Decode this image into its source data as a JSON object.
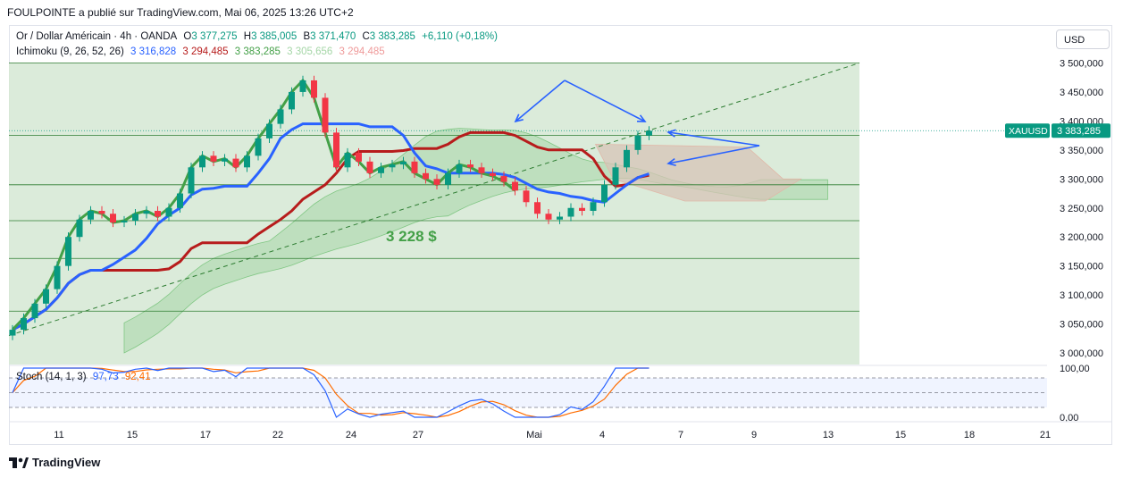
{
  "header": {
    "publish_line": "FOULPOINTE a publié sur TradingView.com, Mai 06, 2025 13:26 UTC+2"
  },
  "legend": {
    "symbol_line": "Or / Dollar Américain · 4h · OANDA",
    "ohlc": {
      "o_label": "O",
      "o": "3 377,275",
      "h_label": "H",
      "h": "3 385,005",
      "b_label": "B",
      "b": "3 371,470",
      "c_label": "C",
      "c": "3 383,285",
      "change": "+6,110 (+0,18%)"
    },
    "ichimoku_label": "Ichimoku (9, 26, 52, 26)",
    "ichimoku_values": [
      "3 316,828",
      "3 294,485",
      "3 383,285",
      "3 305,656",
      "3 294,485"
    ],
    "stoch_label": "Stoch (14, 1, 3)",
    "stoch_values": [
      "97,73",
      "92,41"
    ]
  },
  "currency_button": "USD",
  "footer_brand": "TradingView",
  "colors": {
    "bull": "#089981",
    "bear": "#f23645",
    "tenkan": "#2962ff",
    "kijun": "#b71c1c",
    "chikou": "#43a047",
    "cloud_bull": "#a5d6a7",
    "cloud_bear": "#d7c4b7",
    "zone": "#d5e8d4",
    "stoch_k": "#2962ff",
    "stoch_d": "#ff6d00"
  },
  "chart_data": {
    "type": "candlestick",
    "symbol": "XAUUSD",
    "last_price": "3 383,285",
    "y_ticks": [
      "3 500,000",
      "3 450,000",
      "3 400,000",
      "3 350,000",
      "3 300,000",
      "3 250,000",
      "3 200,000",
      "3 150,000",
      "3 100,000",
      "3 050,000",
      "3 000,000"
    ],
    "ylim": [
      2980,
      3510
    ],
    "x_ticks": [
      "11",
      "15",
      "17",
      "22",
      "24",
      "27",
      "Mai",
      "4",
      "7",
      "9",
      "13",
      "15",
      "18",
      "21"
    ],
    "annotation": "3 228 $",
    "horizontal_levels": [
      3500,
      3375,
      3290,
      3228,
      3163,
      3072
    ],
    "trendline": {
      "from": [
        3040,
        "start"
      ],
      "to": [
        3500,
        "end"
      ]
    },
    "candles_close": [
      3040,
      3060,
      3085,
      3110,
      3150,
      3200,
      3230,
      3245,
      3240,
      3225,
      3228,
      3240,
      3245,
      3235,
      3250,
      3275,
      3320,
      3340,
      3330,
      3335,
      3320,
      3340,
      3370,
      3395,
      3420,
      3450,
      3470,
      3440,
      3380,
      3320,
      3345,
      3330,
      3310,
      3320,
      3325,
      3330,
      3310,
      3300,
      3290,
      3310,
      3325,
      3320,
      3310,
      3305,
      3295,
      3280,
      3260,
      3240,
      3230,
      3235,
      3250,
      3245,
      3260,
      3290,
      3320,
      3350,
      3375,
      3383
    ],
    "stoch_levels": {
      "upper": 80,
      "lower": 20,
      "ylim": [
        0,
        100
      ],
      "ticks": [
        "100,00",
        "0,00"
      ],
      "last_k": 97.73,
      "last_d": 92.41
    }
  }
}
